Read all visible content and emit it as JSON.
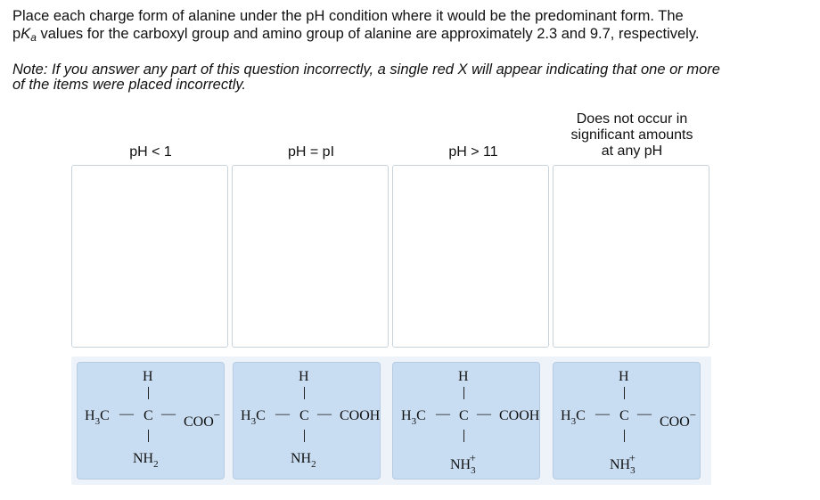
{
  "question": {
    "line1": "Place each charge form of alanine under the pH condition where it would be the predominant form. The",
    "line2_p": "p",
    "line2_K": "K",
    "line2_a": "a",
    "line2_rest": " values for the carboxyl group and amino group of alanine are approximately 2.3 and 9.7, respectively."
  },
  "note": {
    "line1": "Note: If you answer any part of this question incorrectly, a single red X will appear indicating that one or more",
    "line2": "of the items were placed incorrectly."
  },
  "columns": [
    {
      "label": "pH < 1"
    },
    {
      "label": "pH = pI"
    },
    {
      "label": "pH > 11"
    },
    {
      "label_line1": "Does not occur in",
      "label_line2": "significant amounts",
      "label_line3": "at any pH"
    }
  ],
  "cards": [
    {
      "top": "H",
      "left": "H",
      "left_sub": "3",
      "left_c": "C",
      "center": "C",
      "right": "COO",
      "right_sup": "−",
      "bottom": "NH",
      "bottom_sub": "2",
      "bottom_sup": ""
    },
    {
      "top": "H",
      "left": "H",
      "left_sub": "3",
      "left_c": "C",
      "center": "C",
      "right": "COOH",
      "right_sup": "",
      "bottom": "NH",
      "bottom_sub": "2",
      "bottom_sup": ""
    },
    {
      "top": "H",
      "left": "H",
      "left_sub": "3",
      "left_c": "C",
      "center": "C",
      "right": "COOH",
      "right_sup": "",
      "bottom": "NH",
      "bottom_sub": "3",
      "bottom_sup": "+"
    },
    {
      "top": "H",
      "left": "H",
      "left_sub": "3",
      "left_c": "C",
      "center": "C",
      "right": "COO",
      "right_sup": "−",
      "bottom": "NH",
      "bottom_sub": "3",
      "bottom_sup": "+"
    }
  ],
  "bond": "—"
}
